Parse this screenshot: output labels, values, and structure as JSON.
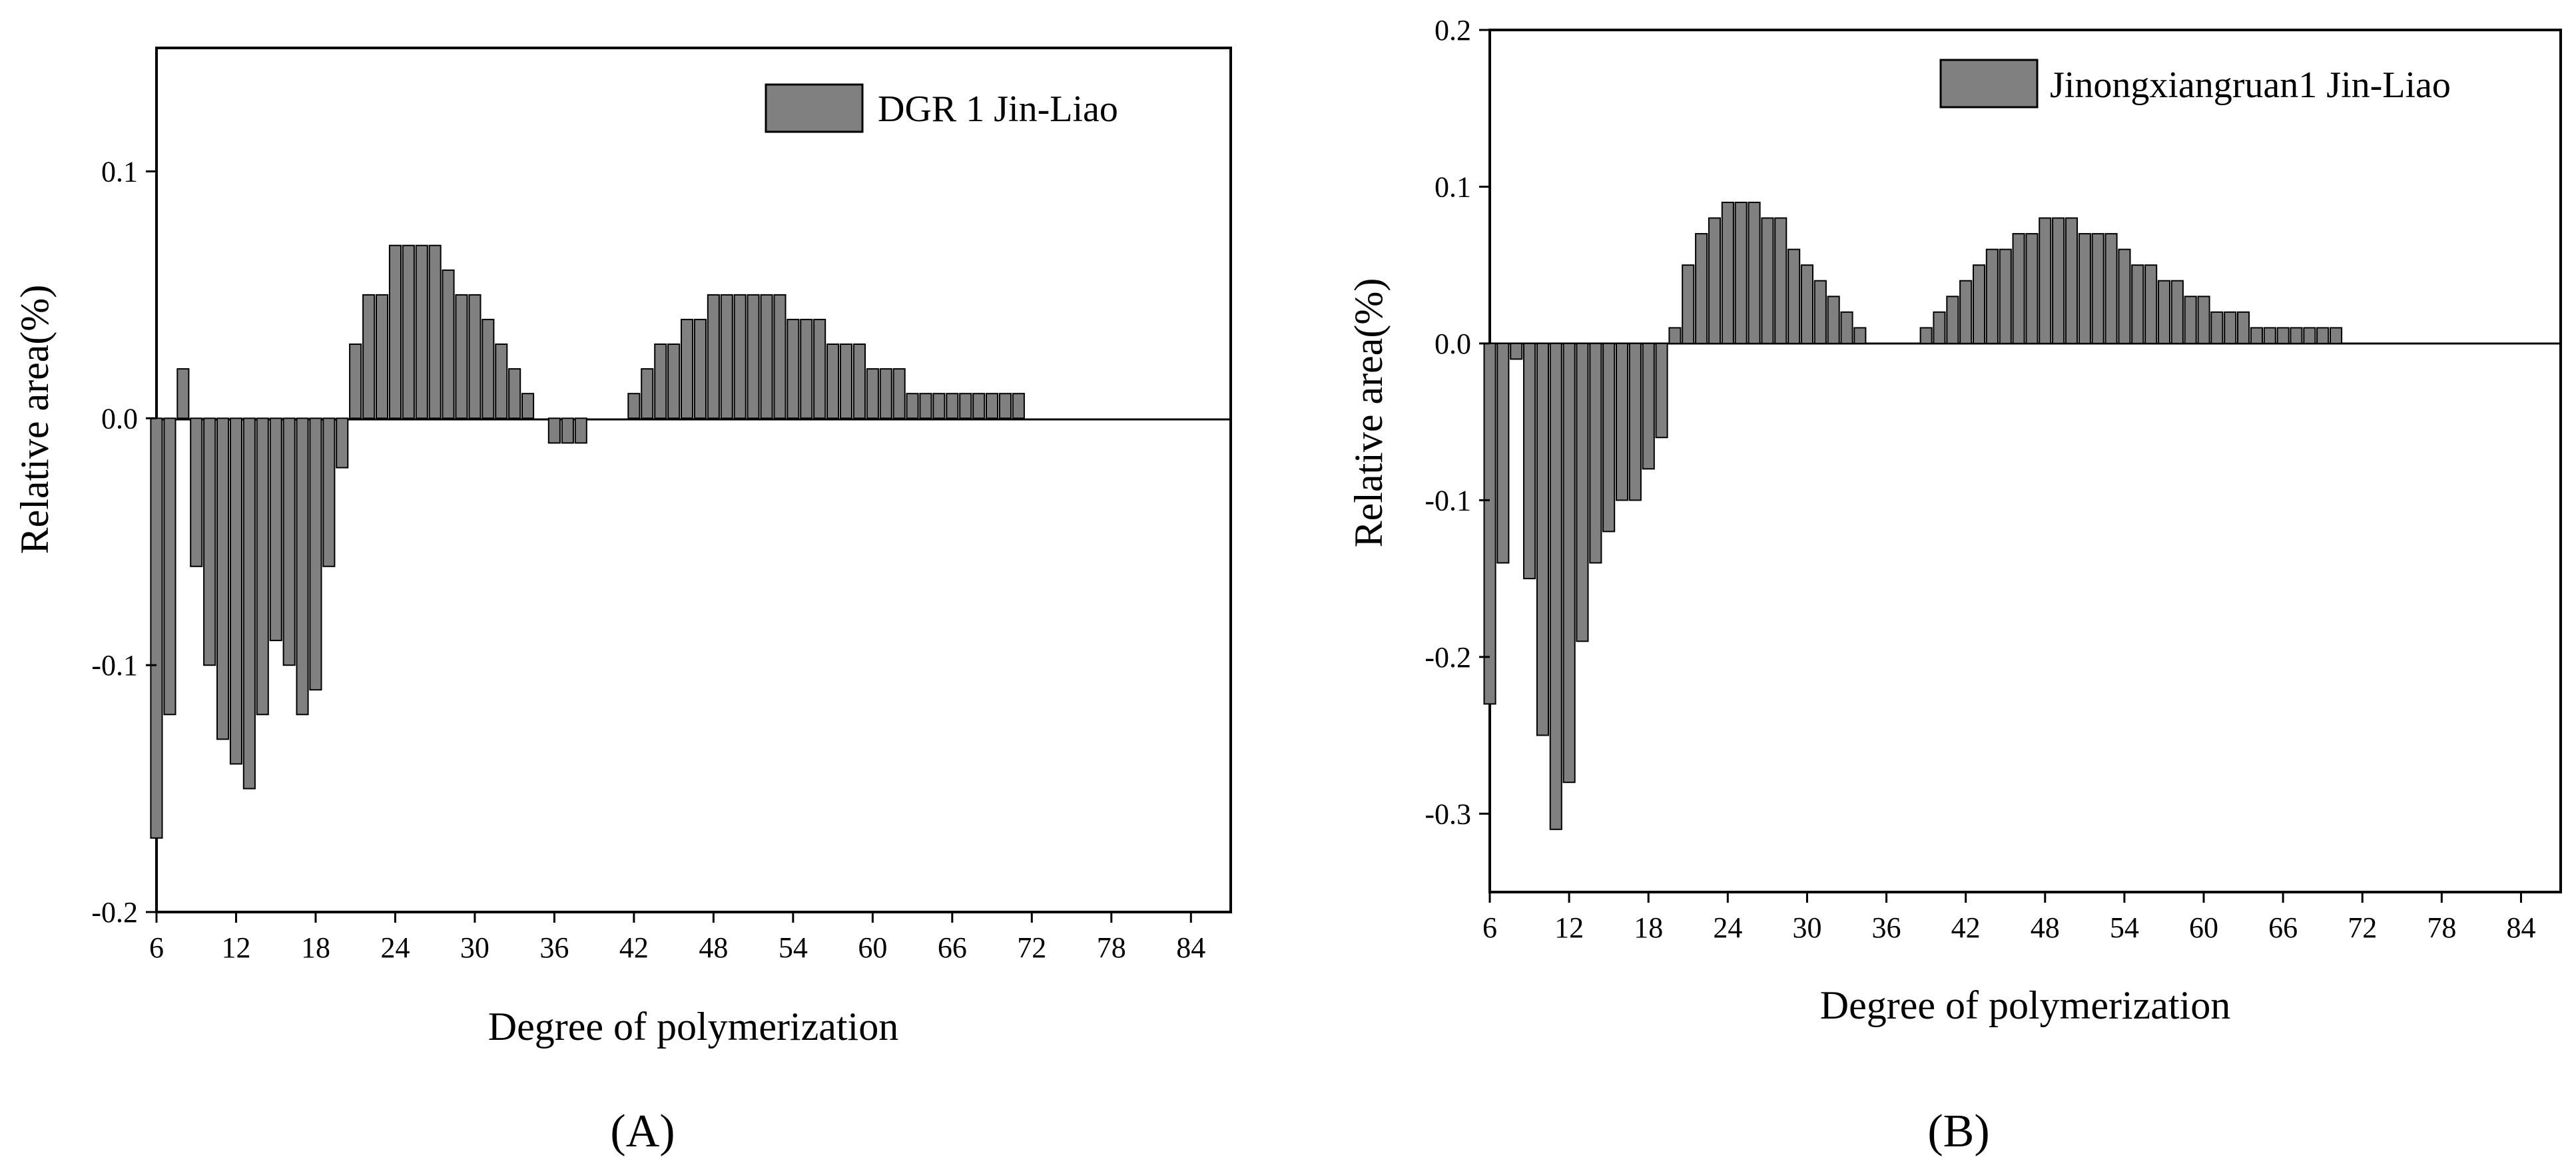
{
  "figure": {
    "panels": [
      "(A)",
      "(B)"
    ],
    "bar_color": "#808080",
    "bar_edge_color": "#000000"
  },
  "chart_data": [
    {
      "id": "A",
      "type": "bar",
      "panel_label": "(A)",
      "legend": "DGR 1 Jin-Liao",
      "xlabel": "Degree of polymerization",
      "ylabel": "Relative area(%)",
      "xlim": [
        6,
        87
      ],
      "ylim": [
        -0.2,
        0.15
      ],
      "xticks": [
        6,
        12,
        18,
        24,
        30,
        36,
        42,
        48,
        54,
        60,
        66,
        72,
        78,
        84
      ],
      "yticks": [
        -0.2,
        -0.1,
        0.0,
        0.1
      ],
      "ytick_labels": [
        "-0.2",
        "-0.1",
        "0.0",
        "0.1"
      ],
      "x": [
        6,
        7,
        8,
        9,
        10,
        11,
        12,
        13,
        14,
        15,
        16,
        17,
        18,
        19,
        20,
        21,
        22,
        23,
        24,
        25,
        26,
        27,
        28,
        29,
        30,
        31,
        32,
        33,
        34,
        35,
        36,
        37,
        38,
        39,
        40,
        41,
        42,
        43,
        44,
        45,
        46,
        47,
        48,
        49,
        50,
        51,
        52,
        53,
        54,
        55,
        56,
        57,
        58,
        59,
        60,
        61,
        62,
        63,
        64,
        65,
        66,
        67,
        68,
        69,
        70,
        71
      ],
      "values": [
        -0.17,
        -0.12,
        0.02,
        -0.06,
        -0.1,
        -0.13,
        -0.14,
        -0.15,
        -0.12,
        -0.09,
        -0.1,
        -0.12,
        -0.11,
        -0.06,
        -0.02,
        0.03,
        0.05,
        0.05,
        0.07,
        0.07,
        0.07,
        0.07,
        0.06,
        0.05,
        0.05,
        0.04,
        0.03,
        0.02,
        0.01,
        0,
        -0.01,
        -0.01,
        -0.01,
        0,
        0,
        0,
        0.01,
        0.02,
        0.03,
        0.03,
        0.04,
        0.04,
        0.05,
        0.05,
        0.05,
        0.05,
        0.05,
        0.05,
        0.04,
        0.04,
        0.04,
        0.03,
        0.03,
        0.03,
        0.02,
        0.02,
        0.02,
        0.01,
        0.01,
        0.01,
        0.01,
        0.01,
        0.01,
        0.01,
        0.01,
        0.01
      ]
    },
    {
      "id": "B",
      "type": "bar",
      "panel_label": "(B)",
      "legend": "Jinongxiangruan1 Jin-Liao",
      "xlabel": "Degree of polymerization",
      "ylabel": "Relative area(%)",
      "xlim": [
        6,
        87
      ],
      "ylim": [
        -0.35,
        0.2
      ],
      "xticks": [
        6,
        12,
        18,
        24,
        30,
        36,
        42,
        48,
        54,
        60,
        66,
        72,
        78,
        84
      ],
      "yticks": [
        -0.3,
        -0.2,
        -0.1,
        0.0,
        0.1,
        0.2
      ],
      "ytick_labels": [
        "-0.3",
        "-0.2",
        "-0.1",
        "0.0",
        "0.1",
        "0.2"
      ],
      "x": [
        6,
        7,
        8,
        9,
        10,
        11,
        12,
        13,
        14,
        15,
        16,
        17,
        18,
        19,
        20,
        21,
        22,
        23,
        24,
        25,
        26,
        27,
        28,
        29,
        30,
        31,
        32,
        33,
        34,
        35,
        36,
        37,
        38,
        39,
        40,
        41,
        42,
        43,
        44,
        45,
        46,
        47,
        48,
        49,
        50,
        51,
        52,
        53,
        54,
        55,
        56,
        57,
        58,
        59,
        60,
        61,
        62,
        63,
        64,
        65,
        66,
        67,
        68,
        69,
        70
      ],
      "values": [
        -0.23,
        -0.14,
        -0.01,
        -0.15,
        -0.25,
        -0.31,
        -0.28,
        -0.19,
        -0.14,
        -0.12,
        -0.1,
        -0.1,
        -0.08,
        -0.06,
        0.01,
        0.05,
        0.07,
        0.08,
        0.09,
        0.09,
        0.09,
        0.08,
        0.08,
        0.06,
        0.05,
        0.04,
        0.03,
        0.02,
        0.01,
        0,
        0,
        0,
        0,
        0.01,
        0.02,
        0.03,
        0.04,
        0.05,
        0.06,
        0.06,
        0.07,
        0.07,
        0.08,
        0.08,
        0.08,
        0.07,
        0.07,
        0.07,
        0.06,
        0.05,
        0.05,
        0.04,
        0.04,
        0.03,
        0.03,
        0.02,
        0.02,
        0.02,
        0.01,
        0.01,
        0.01,
        0.01,
        0.01,
        0.01,
        0.01
      ]
    }
  ]
}
